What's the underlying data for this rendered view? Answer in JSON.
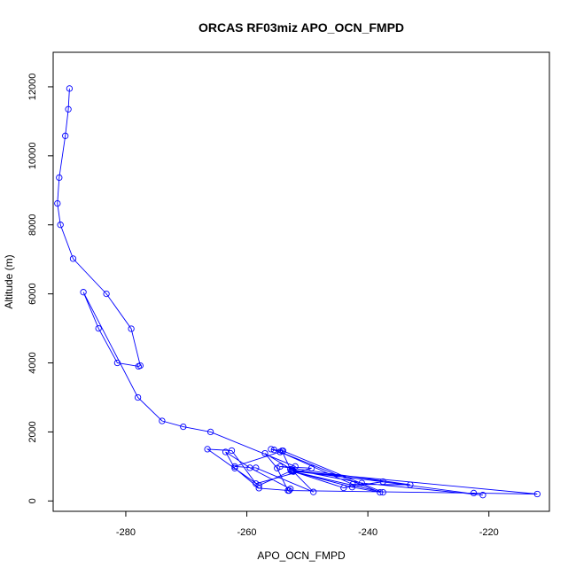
{
  "chart_data": {
    "type": "line",
    "title": "ORCAS RF03miz APO_OCN_FMPD",
    "xlabel": "APO_OCN_FMPD",
    "ylabel": "Altitude (m)",
    "xlim": [
      -292,
      -210
    ],
    "ylim": [
      -300,
      13000
    ],
    "x_ticks": [
      -280,
      -260,
      -240,
      -220
    ],
    "y_ticks": [
      0,
      2000,
      4000,
      6000,
      8000,
      10000,
      12000
    ],
    "x_tick_labels": [
      "-280",
      "-260",
      "-240",
      "-220"
    ],
    "y_tick_labels": [
      "0",
      "2000",
      "4000",
      "6000",
      "8000",
      "10000",
      "12000"
    ],
    "grid": false,
    "series": [
      {
        "color": "#0000ff",
        "marker": "open-circle",
        "x": [
          -289.3,
          -289.5,
          -290.0,
          -291.0,
          -291.3,
          -290.8,
          -288.7,
          -283.2,
          -279.1,
          -277.6,
          -277.9,
          -281.4,
          -284.5,
          -287.0,
          -278.0,
          -274.0,
          -270.5,
          -266.0,
          -252.0,
          -252.3,
          -212.0,
          -222.5,
          -253.0,
          -258.0,
          -262.0,
          -263.5,
          -259.5,
          -252.8,
          -253.2,
          -255.0,
          -257.0,
          -252.5,
          -221.0,
          -241.0,
          -252.8,
          -254.2,
          -256.0,
          -254.5,
          -242.5,
          -233.0,
          -254.5,
          -249.3,
          -258.5,
          -262.5,
          -266.5,
          -258.0,
          -252.7,
          -237.5,
          -244.0,
          -252.5,
          -242.6,
          -238.0,
          -254.5,
          -262.0,
          -258.5,
          -249.0,
          -252.3,
          -237.5,
          -254.0,
          -255.5
        ],
        "y": [
          11950,
          11350,
          10580,
          9370,
          8620,
          8000,
          7020,
          6000,
          4990,
          3920,
          3900,
          4000,
          5000,
          6050,
          3000,
          2320,
          2150,
          2000,
          1000,
          870,
          200,
          230,
          300,
          370,
          950,
          1420,
          960,
          350,
          300,
          950,
          1380,
          900,
          170,
          520,
          920,
          1450,
          1500,
          1420,
          480,
          470,
          1000,
          950,
          500,
          1460,
          1500,
          450,
          870,
          560,
          380,
          860,
          400,
          250,
          1420,
          1000,
          960,
          260,
          850,
          250,
          1450,
          1480
        ]
      }
    ]
  }
}
